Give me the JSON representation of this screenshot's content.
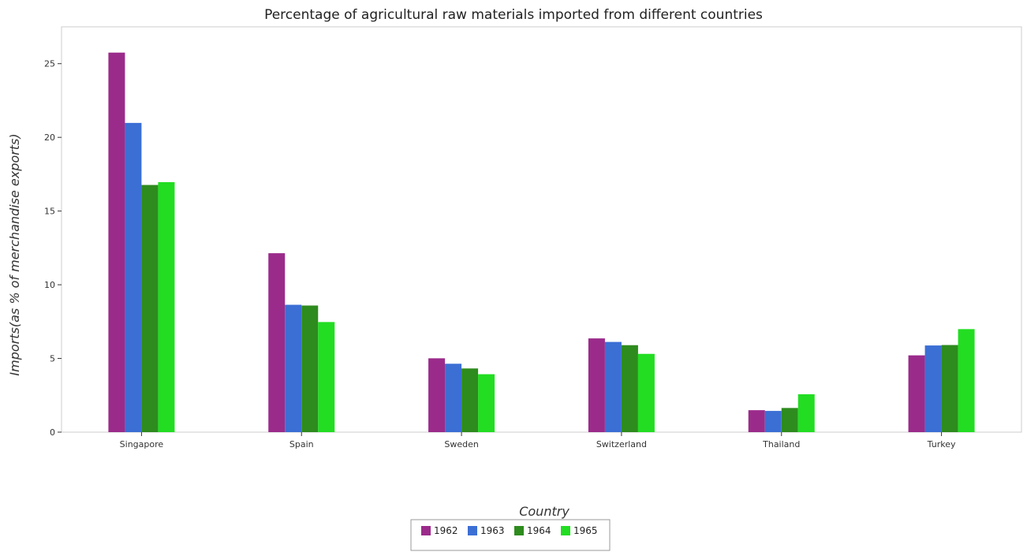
{
  "chart_data": {
    "type": "bar",
    "title": "Percentage of agricultural raw materials imported from different countries",
    "xlabel": "Country",
    "ylabel": "Imports(as % of merchandise exports)",
    "categories": [
      "Singapore",
      "Spain",
      "Sweden",
      "Switzerland",
      "Thailand",
      "Turkey"
    ],
    "series": [
      {
        "name": "1962",
        "color": "#9b2b8b",
        "values": [
          25.75,
          12.14,
          5.01,
          6.36,
          1.49,
          5.21
        ]
      },
      {
        "name": "1963",
        "color": "#3b6fd4",
        "values": [
          20.98,
          8.64,
          4.64,
          6.12,
          1.44,
          5.88
        ]
      },
      {
        "name": "1964",
        "color": "#2e8b1e",
        "values": [
          16.77,
          8.59,
          4.32,
          5.9,
          1.64,
          5.91
        ]
      },
      {
        "name": "1965",
        "color": "#22dd22",
        "values": [
          16.96,
          7.47,
          3.93,
          5.31,
          2.57,
          6.99
        ]
      }
    ],
    "ylim": [
      0,
      27.5
    ],
    "yticks": [
      0,
      5,
      10,
      15,
      20,
      25
    ],
    "grid": false,
    "legend_position": "bottom-center"
  }
}
